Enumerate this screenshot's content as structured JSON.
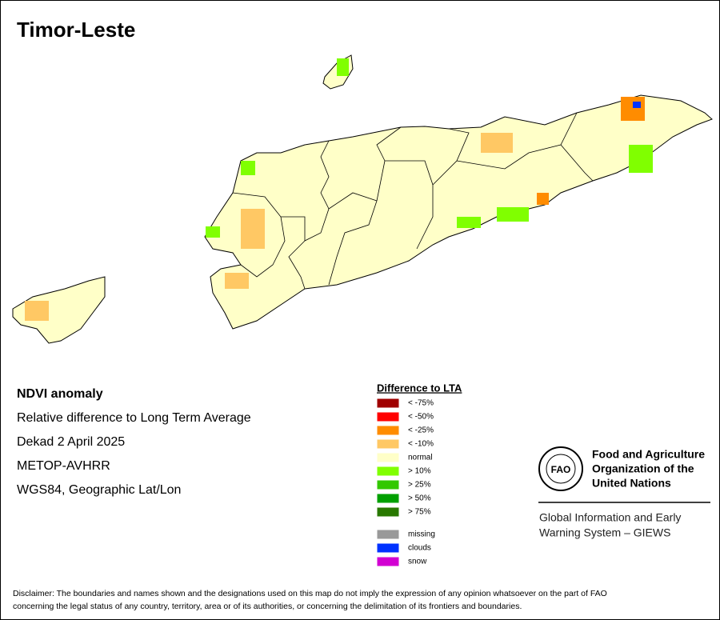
{
  "title": "Timor-Leste",
  "info": {
    "heading": "NDVI anomaly",
    "lines": [
      "Relative difference to Long Term Average",
      "Dekad 2 April 2025",
      "METOP-AVHRR",
      "WGS84, Geographic Lat/Lon"
    ]
  },
  "legend": {
    "title": "Difference to LTA",
    "items": [
      {
        "label": "< -75%",
        "color": "#a00000"
      },
      {
        "label": "< -50%",
        "color": "#ff0000"
      },
      {
        "label": "< -25%",
        "color": "#ff8c00"
      },
      {
        "label": "< -10%",
        "color": "#ffc864"
      },
      {
        "label": "normal",
        "color": "#ffffc8"
      },
      {
        "label": "> 10%",
        "color": "#80ff00"
      },
      {
        "label": "> 25%",
        "color": "#32c800"
      },
      {
        "label": "> 50%",
        "color": "#00a000"
      },
      {
        "label": "> 75%",
        "color": "#287800"
      }
    ],
    "extra": [
      {
        "label": "missing",
        "color": "#999999"
      },
      {
        "label": "clouds",
        "color": "#0032ff"
      },
      {
        "label": "snow",
        "color": "#d200d2"
      }
    ]
  },
  "organization": {
    "name": [
      "Food and Agriculture",
      "Organization of the",
      "United Nations"
    ],
    "logo": "FAO",
    "system": [
      "Global Information and Early",
      "Warning System – GIEWS"
    ]
  },
  "disclaimer": [
    "Disclaimer: The boundaries and names shown and the designations used on this map do not imply the expression of any opinion whatsoever on the part of FAO",
    "concerning the legal status of any country, territory, area or of its authorities, or concerning the delimitation of its frontiers and boundaries."
  ]
}
